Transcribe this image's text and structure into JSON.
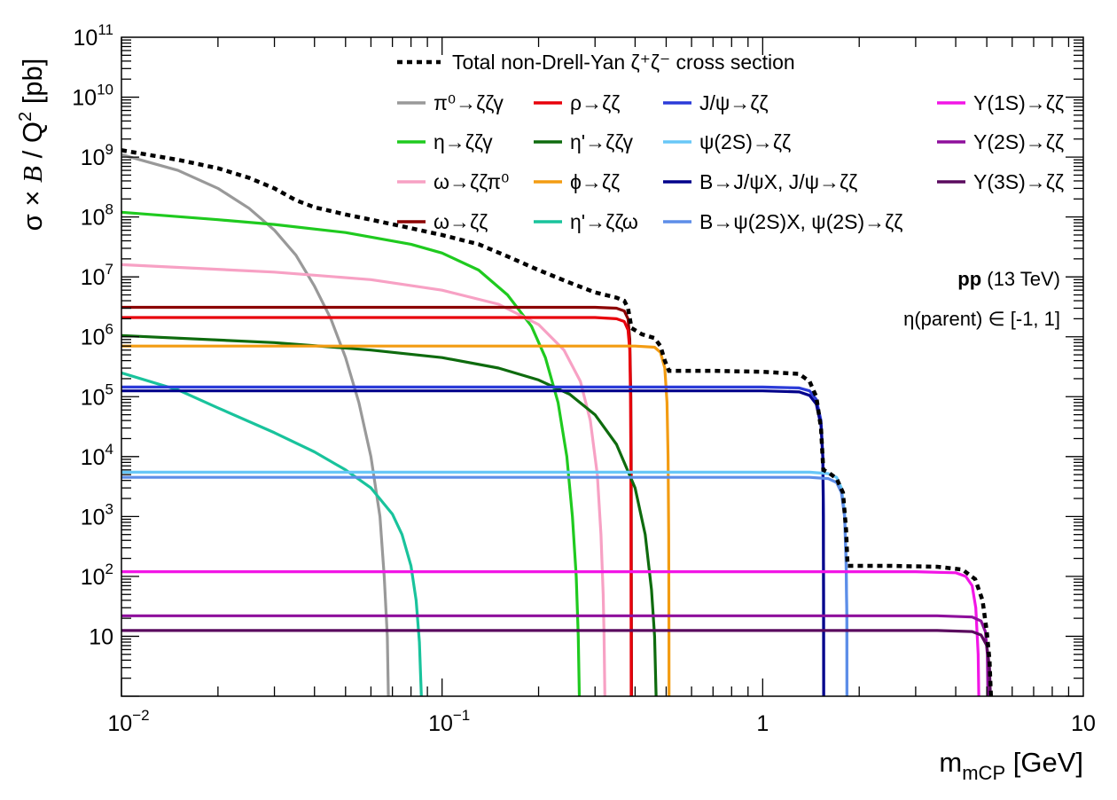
{
  "chart_data": {
    "type": "line",
    "x_scale": "log",
    "y_scale": "log",
    "xlim": [
      0.01,
      10
    ],
    "ylim": [
      1,
      100000000000
    ],
    "xlabel": "m_mCP [GeV]",
    "ylabel": "σ × B / Q² [pb]",
    "x_tick_labels": [
      {
        "value": 0.01,
        "base": "10",
        "exp": "−2"
      },
      {
        "value": 0.1,
        "base": "10",
        "exp": "−1"
      },
      {
        "value": 1,
        "base": "1",
        "exp": ""
      },
      {
        "value": 10,
        "base": "10",
        "exp": ""
      }
    ],
    "y_tick_labels": [
      {
        "value": 10,
        "base": "10",
        "exp": ""
      },
      {
        "value": 100,
        "base": "10",
        "exp": "2"
      },
      {
        "value": 1000,
        "base": "10",
        "exp": "3"
      },
      {
        "value": 10000,
        "base": "10",
        "exp": "4"
      },
      {
        "value": 100000,
        "base": "10",
        "exp": "5"
      },
      {
        "value": 1000000,
        "base": "10",
        "exp": "6"
      },
      {
        "value": 10000000,
        "base": "10",
        "exp": "7"
      },
      {
        "value": 100000000,
        "base": "10",
        "exp": "8"
      },
      {
        "value": 1000000000,
        "base": "10",
        "exp": "9"
      },
      {
        "value": 10000000000,
        "base": "10",
        "exp": "10"
      },
      {
        "value": 100000000000,
        "base": "10",
        "exp": "11"
      }
    ],
    "annotations": {
      "beam_bold": "pp",
      "beam_rest": " (13 TeV)",
      "eta": "η(parent) ∈ [-1, 1]"
    },
    "total": {
      "name": "Total non-Drell-Yan ζ⁺ζ⁻ cross section",
      "color": "#000000",
      "style": "dotted",
      "points": [
        [
          0.01,
          1300000000.0
        ],
        [
          0.015,
          900000000.0
        ],
        [
          0.02,
          650000000.0
        ],
        [
          0.025,
          450000000.0
        ],
        [
          0.03,
          300000000.0
        ],
        [
          0.035,
          190000000.0
        ],
        [
          0.04,
          145000000.0
        ],
        [
          0.05,
          110000000.0
        ],
        [
          0.06,
          90000000.0
        ],
        [
          0.08,
          65000000.0
        ],
        [
          0.1,
          50000000.0
        ],
        [
          0.13,
          35000000.0
        ],
        [
          0.16,
          22000000.0
        ],
        [
          0.2,
          13000000.0
        ],
        [
          0.25,
          8000000.0
        ],
        [
          0.3,
          5500000.0
        ],
        [
          0.35,
          4500000.0
        ],
        [
          0.37,
          4000000.0
        ],
        [
          0.38,
          3000000.0
        ],
        [
          0.39,
          1400000.0
        ],
        [
          0.42,
          1100000.0
        ],
        [
          0.46,
          950000.0
        ],
        [
          0.48,
          700000.0
        ],
        [
          0.495,
          400000.0
        ],
        [
          0.51,
          270000.0
        ],
        [
          0.7,
          270000.0
        ],
        [
          1.0,
          260000.0
        ],
        [
          1.3,
          240000.0
        ],
        [
          1.4,
          180000.0
        ],
        [
          1.47,
          100000.0
        ],
        [
          1.52,
          30000.0
        ],
        [
          1.545,
          6000.0
        ],
        [
          1.6,
          5500.0
        ],
        [
          1.7,
          4300.0
        ],
        [
          1.78,
          2500.0
        ],
        [
          1.82,
          600
        ],
        [
          1.84,
          150
        ],
        [
          2.5,
          150
        ],
        [
          3.5,
          145
        ],
        [
          4.2,
          130
        ],
        [
          4.6,
          90
        ],
        [
          4.85,
          40
        ],
        [
          5.0,
          12
        ],
        [
          5.1,
          4
        ],
        [
          5.15,
          1
        ]
      ]
    },
    "series": [
      {
        "name": "π⁰→ζζγ",
        "color": "#999999",
        "points": [
          [
            0.01,
            1100000000.0
          ],
          [
            0.015,
            600000000.0
          ],
          [
            0.02,
            300000000.0
          ],
          [
            0.025,
            140000000.0
          ],
          [
            0.03,
            60000000.0
          ],
          [
            0.035,
            23000000.0
          ],
          [
            0.04,
            7000000.0
          ],
          [
            0.045,
            2000000.0
          ],
          [
            0.05,
            450000.0
          ],
          [
            0.055,
            80000.0
          ],
          [
            0.06,
            10000.0
          ],
          [
            0.064,
            1000.0
          ],
          [
            0.066,
            100
          ],
          [
            0.0675,
            10
          ],
          [
            0.068,
            1
          ]
        ]
      },
      {
        "name": "η→ζζγ",
        "color": "#1fca1f",
        "points": [
          [
            0.01,
            120000000.0
          ],
          [
            0.02,
            90000000.0
          ],
          [
            0.03,
            75000000.0
          ],
          [
            0.05,
            55000000.0
          ],
          [
            0.08,
            35000000.0
          ],
          [
            0.1,
            25000000.0
          ],
          [
            0.13,
            13000000.0
          ],
          [
            0.16,
            5000000.0
          ],
          [
            0.19,
            1500000.0
          ],
          [
            0.21,
            450000.0
          ],
          [
            0.23,
            80000.0
          ],
          [
            0.245,
            10000.0
          ],
          [
            0.255,
            1000.0
          ],
          [
            0.262,
            100
          ],
          [
            0.266,
            10
          ],
          [
            0.268,
            1
          ]
        ]
      },
      {
        "name": "ω→ζζπ⁰",
        "color": "#f7a1c4",
        "points": [
          [
            0.01,
            16000000.0
          ],
          [
            0.03,
            12000000.0
          ],
          [
            0.06,
            9000000.0
          ],
          [
            0.1,
            6000000.0
          ],
          [
            0.15,
            3500000.0
          ],
          [
            0.2,
            1600000.0
          ],
          [
            0.24,
            600000.0
          ],
          [
            0.27,
            180000.0
          ],
          [
            0.29,
            40000.0
          ],
          [
            0.305,
            5000.0
          ],
          [
            0.313,
            500
          ],
          [
            0.318,
            50
          ],
          [
            0.32,
            10
          ],
          [
            0.322,
            1
          ]
        ]
      },
      {
        "name": "ω→ζζ",
        "color": "#8b0000",
        "points": [
          [
            0.01,
            3100000.0
          ],
          [
            0.3,
            3100000.0
          ],
          [
            0.35,
            3000000.0
          ],
          [
            0.37,
            2700000.0
          ],
          [
            0.38,
            2000000.0
          ],
          [
            0.385,
            900000.0
          ],
          [
            0.388,
            100000.0
          ],
          [
            0.389,
            10000.0
          ],
          [
            0.3895,
            100
          ],
          [
            0.3899,
            1
          ]
        ]
      },
      {
        "name": "ρ→ζζ",
        "color": "#e8000b",
        "points": [
          [
            0.01,
            2100000.0
          ],
          [
            0.3,
            2100000.0
          ],
          [
            0.35,
            2000000.0
          ],
          [
            0.37,
            1800000.0
          ],
          [
            0.38,
            1300000.0
          ],
          [
            0.385,
            600000.0
          ],
          [
            0.387,
            100000.0
          ],
          [
            0.388,
            10000.0
          ],
          [
            0.3885,
            100
          ],
          [
            0.389,
            1
          ]
        ]
      },
      {
        "name": "η'→ζζγ",
        "color": "#0e6b0e",
        "points": [
          [
            0.01,
            1050000.0
          ],
          [
            0.03,
            800000.0
          ],
          [
            0.06,
            600000.0
          ],
          [
            0.1,
            450000.0
          ],
          [
            0.15,
            300000.0
          ],
          [
            0.2,
            190000.0
          ],
          [
            0.25,
            110000.0
          ],
          [
            0.3,
            50000.0
          ],
          [
            0.35,
            16000.0
          ],
          [
            0.4,
            3000.0
          ],
          [
            0.43,
            500
          ],
          [
            0.45,
            60
          ],
          [
            0.46,
            10
          ],
          [
            0.465,
            1
          ]
        ]
      },
      {
        "name": "η'→ζζω",
        "color": "#19c39c",
        "points": [
          [
            0.01,
            250000.0
          ],
          [
            0.015,
            130000.0
          ],
          [
            0.02,
            65000.0
          ],
          [
            0.03,
            25000.0
          ],
          [
            0.04,
            12000.0
          ],
          [
            0.05,
            6000.0
          ],
          [
            0.06,
            3000.0
          ],
          [
            0.07,
            1100.0
          ],
          [
            0.075,
            500
          ],
          [
            0.08,
            150
          ],
          [
            0.083,
            40
          ],
          [
            0.085,
            8
          ],
          [
            0.0862,
            1
          ]
        ]
      },
      {
        "name": "ϕ→ζζ",
        "color": "#f39c12",
        "points": [
          [
            0.01,
            700000.0
          ],
          [
            0.4,
            700000.0
          ],
          [
            0.46,
            670000.0
          ],
          [
            0.48,
            550000.0
          ],
          [
            0.495,
            300000.0
          ],
          [
            0.503,
            80000.0
          ],
          [
            0.507,
            10000.0
          ],
          [
            0.509,
            500
          ],
          [
            0.51,
            10
          ],
          [
            0.5105,
            1
          ]
        ]
      },
      {
        "name": "J/ψ→ζζ",
        "color": "#2b3bd8",
        "points": [
          [
            0.01,
            145000.0
          ],
          [
            1.0,
            145000.0
          ],
          [
            1.3,
            140000.0
          ],
          [
            1.4,
            125000.0
          ],
          [
            1.47,
            90000.0
          ],
          [
            1.52,
            40000.0
          ],
          [
            1.54,
            10000.0
          ],
          [
            1.546,
            1000.0
          ],
          [
            1.548,
            50
          ],
          [
            1.549,
            1
          ]
        ]
      },
      {
        "name": "B→J/ψX, J/ψ→ζζ",
        "color": "#00008b",
        "points": [
          [
            0.01,
            125000.0
          ],
          [
            1.0,
            125000.0
          ],
          [
            1.3,
            120000.0
          ],
          [
            1.4,
            105000.0
          ],
          [
            1.47,
            75000.0
          ],
          [
            1.52,
            33000.0
          ],
          [
            1.54,
            9000.0
          ],
          [
            1.546,
            1000.0
          ],
          [
            1.548,
            50
          ],
          [
            1.549,
            1
          ]
        ]
      },
      {
        "name": "ψ(2S)→ζζ",
        "color": "#68c7f7",
        "points": [
          [
            0.01,
            5500.0
          ],
          [
            1.4,
            5500.0
          ],
          [
            1.6,
            5200.0
          ],
          [
            1.7,
            4500.0
          ],
          [
            1.76,
            3000.0
          ],
          [
            1.8,
            1200.0
          ],
          [
            1.82,
            200
          ],
          [
            1.83,
            20
          ],
          [
            1.832,
            1
          ]
        ]
      },
      {
        "name": "B→ψ(2S)X, ψ(2S)→ζζ",
        "color": "#5d8de8",
        "points": [
          [
            0.01,
            4500.0
          ],
          [
            1.4,
            4500.0
          ],
          [
            1.6,
            4300.0
          ],
          [
            1.7,
            3700.0
          ],
          [
            1.76,
            2500.0
          ],
          [
            1.8,
            1000.0
          ],
          [
            1.82,
            170
          ],
          [
            1.83,
            18
          ],
          [
            1.832,
            1
          ]
        ]
      },
      {
        "name": "Υ(1S)→ζζ",
        "color": "#f215e6",
        "points": [
          [
            0.01,
            120
          ],
          [
            3.0,
            120
          ],
          [
            4.0,
            115
          ],
          [
            4.3,
            100
          ],
          [
            4.5,
            70
          ],
          [
            4.62,
            30
          ],
          [
            4.7,
            5
          ],
          [
            4.72,
            1
          ]
        ]
      },
      {
        "name": "Υ(2S)→ζζ",
        "color": "#8e0f9c",
        "points": [
          [
            0.01,
            22
          ],
          [
            3.5,
            22
          ],
          [
            4.5,
            21
          ],
          [
            4.8,
            18
          ],
          [
            4.95,
            12
          ],
          [
            5.02,
            5
          ],
          [
            5.04,
            1
          ]
        ]
      },
      {
        "name": "Υ(3S)→ζζ",
        "color": "#5a0a5e",
        "points": [
          [
            0.01,
            12.5
          ],
          [
            3.5,
            12.5
          ],
          [
            4.5,
            12
          ],
          [
            4.8,
            10.5
          ],
          [
            5.0,
            7
          ],
          [
            5.1,
            3
          ],
          [
            5.13,
            1
          ]
        ]
      }
    ],
    "legend_columns": [
      [
        "π⁰→ζζγ",
        "η→ζζγ",
        "ω→ζζπ⁰",
        "ω→ζζ"
      ],
      [
        "ρ→ζζ",
        "η'→ζζγ",
        "ϕ→ζζ",
        "η'→ζζω"
      ],
      [
        "J/ψ→ζζ",
        "ψ(2S)→ζζ",
        "B→J/ψX, J/ψ→ζζ",
        "B→ψ(2S)X, ψ(2S)→ζζ"
      ],
      [
        "Υ(1S)→ζζ",
        "Υ(2S)→ζζ",
        "Υ(3S)→ζζ"
      ]
    ]
  }
}
